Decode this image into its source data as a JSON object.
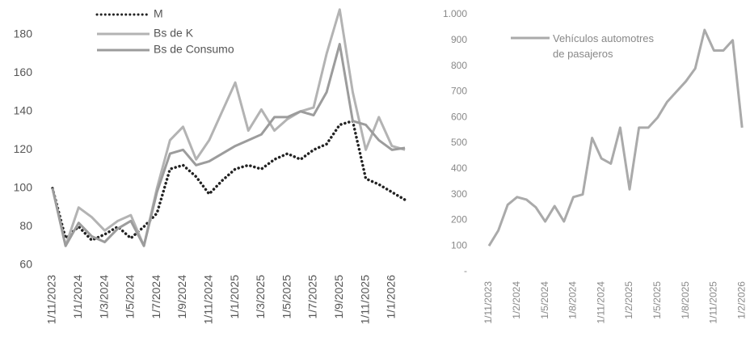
{
  "chart_data": [
    {
      "type": "line",
      "categories": [
        "1/11/2023",
        null,
        "1/1/2024",
        null,
        "1/3/2024",
        null,
        "1/5/2024",
        null,
        "1/7/2024",
        null,
        "1/9/2024",
        null,
        "1/11/2024",
        null,
        "1/1/2025",
        null,
        "1/3/2025",
        null,
        "1/5/2025",
        null,
        "1/7/2025",
        null,
        "1/9/2025",
        null,
        "1/11/2025",
        null,
        "1/1/2026",
        null
      ],
      "series": [
        {
          "name": "M",
          "color": "#222222",
          "style": "dotted",
          "values": [
            100,
            74,
            80,
            73,
            76,
            80,
            74,
            80,
            87,
            110,
            112,
            106,
            97,
            104,
            110,
            112,
            110,
            115,
            118,
            115,
            120,
            123,
            133,
            135,
            105,
            102,
            98,
            94
          ]
        },
        {
          "name": "Bs de K",
          "color": "#b3b3b3",
          "style": "solid",
          "values": [
            100,
            70,
            90,
            85,
            78,
            83,
            86,
            70,
            100,
            125,
            132,
            115,
            125,
            140,
            155,
            130,
            141,
            130,
            136,
            140,
            142,
            170,
            193,
            150,
            120,
            137,
            122,
            120
          ]
        },
        {
          "name": "Bs de Consumo",
          "color": "#9c9c9c",
          "style": "solid",
          "values": [
            100,
            70,
            82,
            75,
            72,
            79,
            83,
            70,
            98,
            118,
            120,
            112,
            114,
            118,
            122,
            125,
            128,
            137,
            137,
            140,
            138,
            150,
            175,
            135,
            133,
            125,
            120,
            121
          ]
        }
      ],
      "ylim": [
        60,
        195
      ],
      "yticks": [
        60,
        80,
        100,
        120,
        140,
        160,
        180
      ],
      "grid": false,
      "legend": "upper-left"
    },
    {
      "type": "line",
      "categories": [
        "1/11/2023",
        null,
        null,
        "1/2/2024",
        null,
        null,
        "1/5/2024",
        null,
        null,
        "1/8/2024",
        null,
        null,
        "1/11/2024",
        null,
        null,
        "1/2/2025",
        null,
        null,
        "1/5/2025",
        null,
        null,
        "1/8/2025",
        null,
        null,
        "1/11/2025",
        null,
        null,
        "1/2/2026"
      ],
      "series": [
        {
          "name": "Vehículos automotres de pasajeros",
          "color": "#aaaaaa",
          "style": "solid",
          "values": [
            100,
            160,
            260,
            290,
            280,
            250,
            195,
            255,
            195,
            290,
            300,
            520,
            440,
            420,
            560,
            320,
            560,
            560,
            600,
            660,
            700,
            740,
            790,
            940,
            860,
            860,
            900,
            560
          ]
        }
      ],
      "ylim": [
        0,
        1000
      ],
      "yticks": [
        {
          "value": 0,
          "label": "-"
        },
        100,
        200,
        300,
        400,
        500,
        600,
        700,
        800,
        900,
        {
          "value": 1000,
          "label": "1.000"
        }
      ],
      "grid": false,
      "legend": "upper-left"
    }
  ]
}
